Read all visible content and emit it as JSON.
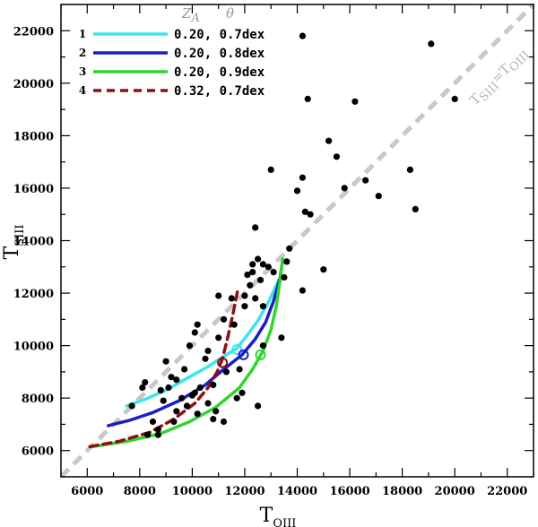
{
  "chart_data": {
    "type": "scatter",
    "x_axis": {
      "label": "T",
      "label_sub": "OIII",
      "min": 5000,
      "max": 23000,
      "ticks": [
        6000,
        8000,
        10000,
        12000,
        14000,
        16000,
        18000,
        20000,
        22000
      ]
    },
    "y_axis": {
      "label": "T",
      "label_sub": "SIII",
      "min": 5000,
      "max": 23000,
      "ticks": [
        6000,
        8000,
        10000,
        12000,
        14000,
        16000,
        18000,
        20000,
        22000
      ]
    },
    "identity_line": {
      "label": "T",
      "label_sub1": "SIII",
      "label_mid": "=T",
      "label_sub2": "OIII",
      "color": "#c8c8c8"
    },
    "legend": {
      "header_z": "Z",
      "header_z_sub": "A",
      "header_theta": "θ",
      "entries": [
        {
          "number": "1",
          "label": "0.20, 0.7dex",
          "color": "#3fe3ee",
          "dash": false
        },
        {
          "number": "2",
          "label": "0.20, 0.8dex",
          "color": "#1a1fc4",
          "dash": false
        },
        {
          "number": "3",
          "label": "0.20, 0.9dex",
          "color": "#2fd62f",
          "dash": false
        },
        {
          "number": "4",
          "label": "0.32, 0.7dex",
          "color": "#8b1010",
          "dash": true
        }
      ]
    },
    "series": [
      {
        "name": "1",
        "color": "#3fe3ee",
        "dash": false,
        "points": [
          [
            7500,
            7700
          ],
          [
            8200,
            7950
          ],
          [
            9000,
            8300
          ],
          [
            9800,
            8750
          ],
          [
            10600,
            9200
          ],
          [
            11300,
            9650
          ],
          [
            11700,
            9900
          ],
          [
            12100,
            10400
          ],
          [
            12500,
            10950
          ],
          [
            12900,
            11650
          ],
          [
            13300,
            12500
          ]
        ],
        "marker": [
          11700,
          9850
        ]
      },
      {
        "name": "2",
        "color": "#1a1fc4",
        "dash": false,
        "points": [
          [
            6800,
            6950
          ],
          [
            7600,
            7150
          ],
          [
            8500,
            7450
          ],
          [
            9500,
            7900
          ],
          [
            10500,
            8500
          ],
          [
            11200,
            9100
          ],
          [
            11900,
            9650
          ],
          [
            12400,
            10250
          ],
          [
            12800,
            10900
          ],
          [
            13100,
            11700
          ],
          [
            13350,
            12600
          ],
          [
            13450,
            13300
          ]
        ],
        "marker": [
          11950,
          9650
        ]
      },
      {
        "name": "3",
        "color": "#2fd62f",
        "dash": false,
        "points": [
          [
            6200,
            6150
          ],
          [
            7500,
            6350
          ],
          [
            8800,
            6650
          ],
          [
            9900,
            7100
          ],
          [
            10900,
            7650
          ],
          [
            11800,
            8400
          ],
          [
            12300,
            9100
          ],
          [
            12700,
            9800
          ],
          [
            13000,
            10600
          ],
          [
            13200,
            11500
          ],
          [
            13350,
            12500
          ],
          [
            13450,
            13300
          ]
        ],
        "marker": [
          12600,
          9650
        ]
      },
      {
        "name": "4",
        "color": "#8b1010",
        "dash": true,
        "points": [
          [
            6100,
            6150
          ],
          [
            7200,
            6350
          ],
          [
            8400,
            6700
          ],
          [
            9300,
            7200
          ],
          [
            10100,
            7800
          ],
          [
            10600,
            8400
          ],
          [
            10950,
            9000
          ],
          [
            11150,
            9500
          ],
          [
            11350,
            10300
          ],
          [
            11550,
            11200
          ],
          [
            11750,
            12200
          ]
        ],
        "marker": [
          11150,
          9350
        ]
      }
    ],
    "scatter_points": [
      [
        14200,
        21800
      ],
      [
        19100,
        21500
      ],
      [
        20000,
        19400
      ],
      [
        14400,
        19400
      ],
      [
        16200,
        19300
      ],
      [
        15200,
        17800
      ],
      [
        15500,
        17200
      ],
      [
        13000,
        16700
      ],
      [
        18300,
        16700
      ],
      [
        14200,
        16400
      ],
      [
        16600,
        16300
      ],
      [
        14000,
        15900
      ],
      [
        15800,
        16000
      ],
      [
        17100,
        15700
      ],
      [
        18500,
        15200
      ],
      [
        14500,
        15000
      ],
      [
        14300,
        15100
      ],
      [
        13700,
        13700
      ],
      [
        13600,
        13200
      ],
      [
        15000,
        12900
      ],
      [
        14200,
        12100
      ],
      [
        12400,
        14500
      ],
      [
        12500,
        13300
      ],
      [
        12300,
        13100
      ],
      [
        12700,
        13100
      ],
      [
        12900,
        13000
      ],
      [
        13100,
        12800
      ],
      [
        12300,
        12800
      ],
      [
        12100,
        12700
      ],
      [
        12600,
        12500
      ],
      [
        13500,
        12600
      ],
      [
        12200,
        12300
      ],
      [
        12400,
        11800
      ],
      [
        12700,
        11500
      ],
      [
        11000,
        11900
      ],
      [
        11500,
        11800
      ],
      [
        12000,
        11500
      ],
      [
        11200,
        11000
      ],
      [
        11600,
        10800
      ],
      [
        10200,
        10800
      ],
      [
        10100,
        10500
      ],
      [
        11000,
        10300
      ],
      [
        13400,
        10300
      ],
      [
        9900,
        10000
      ],
      [
        10600,
        9800
      ],
      [
        12700,
        10000
      ],
      [
        8200,
        8600
      ],
      [
        8100,
        8400
      ],
      [
        9000,
        9400
      ],
      [
        9700,
        9100
      ],
      [
        9400,
        8700
      ],
      [
        9200,
        8800
      ],
      [
        8800,
        8300
      ],
      [
        10300,
        8400
      ],
      [
        10800,
        8500
      ],
      [
        10100,
        8200
      ],
      [
        9600,
        8000
      ],
      [
        10000,
        8100
      ],
      [
        11800,
        9100
      ],
      [
        8900,
        7900
      ],
      [
        9400,
        7500
      ],
      [
        9800,
        7700
      ],
      [
        10200,
        7400
      ],
      [
        10800,
        7200
      ],
      [
        11200,
        7100
      ],
      [
        12500,
        7700
      ],
      [
        9300,
        7100
      ],
      [
        8700,
        6800
      ],
      [
        8500,
        7100
      ],
      [
        8300,
        6600
      ],
      [
        8700,
        6600
      ],
      [
        7700,
        7700
      ],
      [
        11900,
        8200
      ],
      [
        11700,
        8000
      ],
      [
        10600,
        7800
      ],
      [
        10900,
        7500
      ],
      [
        9100,
        8400
      ],
      [
        12000,
        11900
      ],
      [
        11300,
        9000
      ],
      [
        10500,
        9500
      ]
    ]
  }
}
